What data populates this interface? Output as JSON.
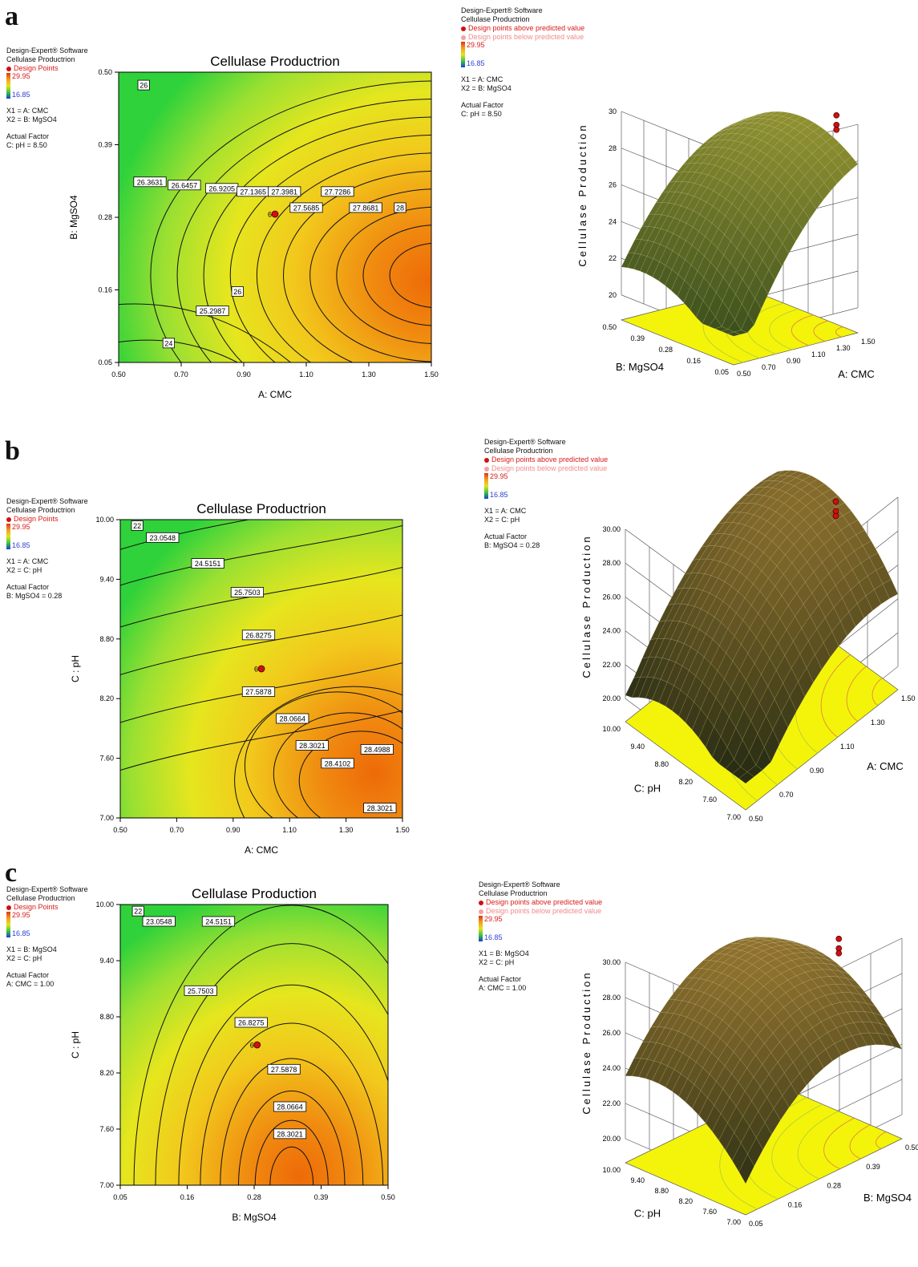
{
  "panels": [
    {
      "label": "a",
      "legend_left": {
        "software": "Design-Expert® Software",
        "response": "Cellulase Productrion",
        "points_label": "Design Points",
        "color_max": "29.95",
        "color_min": "16.85",
        "x1": "X1 = A: CMC",
        "x2": "X2 = B: MgSO4",
        "actual_factor_title": "Actual Factor",
        "actual_factor": "C: pH = 8.50"
      },
      "legend_right": {
        "software": "Design-Expert® Software",
        "response": "Cellulase Productrion",
        "above": "Design points above predicted value",
        "below": "Design points below predicted value",
        "color_max": "29.95",
        "color_min": "16.85",
        "x1": "X1 = A: CMC",
        "x2": "X2 = B: MgSO4",
        "actual_factor_title": "Actual Factor",
        "actual_factor": "C: pH = 8.50"
      },
      "surface": {
        "zlabel": "Cellulase Production",
        "z_ticks": [
          "20",
          "22",
          "24",
          "26",
          "28",
          "30"
        ],
        "back_axis_label": "B: MgSO4",
        "back_ticks": [
          "0.50",
          "0.39",
          "0.28",
          "0.16",
          "0.05"
        ],
        "front_axis_label": "A: CMC",
        "front_ticks": [
          "0.50",
          "0.70",
          "0.90",
          "1.10",
          "1.30",
          "1.50"
        ]
      }
    },
    {
      "label": "b",
      "legend_left": {
        "software": "Design-Expert® Software",
        "response": "Cellulase Productrion",
        "points_label": "Design Points",
        "color_max": "29.95",
        "color_min": "16.85",
        "x1": "X1 = A: CMC",
        "x2": "X2 = C: pH",
        "actual_factor_title": "Actual Factor",
        "actual_factor": "B: MgSO4 = 0.28"
      },
      "legend_right": {
        "software": "Design-Expert® Software",
        "response": "Cellulase Productrion",
        "above": "Design points above predicted value",
        "below": "Design points below predicted value",
        "color_max": "29.95",
        "color_min": "16.85",
        "x1": "X1 = A: CMC",
        "x2": "X2 = C: pH",
        "actual_factor_title": "Actual Factor",
        "actual_factor": "B: MgSO4 = 0.28"
      },
      "surface": {
        "zlabel": "Cellulase Production",
        "z_ticks": [
          "20.00",
          "22.00",
          "24.00",
          "26.00",
          "28.00",
          "30.00"
        ],
        "back_axis_label": "C: pH",
        "back_ticks": [
          "10.00",
          "9.40",
          "8.80",
          "8.20",
          "7.60",
          "7.00"
        ],
        "front_axis_label": "A: CMC",
        "front_ticks": [
          "0.50",
          "0.70",
          "0.90",
          "1.10",
          "1.30",
          "1.50"
        ]
      }
    },
    {
      "label": "c",
      "legend_left": {
        "software": "Design-Expert® Software",
        "response": "Cellulase Productrion",
        "points_label": "Design Points",
        "color_max": "29.95",
        "color_min": "16.85",
        "x1": "X1 = B: MgSO4",
        "x2": "X2 = C: pH",
        "actual_factor_title": "Actual Factor",
        "actual_factor": "A: CMC = 1.00"
      },
      "legend_right": {
        "software": "Design-Expert® Software",
        "response": "Cellulase Productrion",
        "above": "Design points above predicted value",
        "below": "Design points below predicted value",
        "color_max": "29.95",
        "color_min": "16.85",
        "x1": "X1 = B: MgSO4",
        "x2": "X2 = C: pH",
        "actual_factor_title": "Actual Factor",
        "actual_factor": "A: CMC = 1.00"
      },
      "surface": {
        "zlabel": "Cellulase Production",
        "z_ticks": [
          "20.00",
          "22.00",
          "24.00",
          "26.00",
          "28.00",
          "30.00"
        ],
        "back_axis_label": "C: pH",
        "back_ticks": [
          "10.00",
          "9.40",
          "8.80",
          "8.20",
          "7.60",
          "7.00"
        ],
        "front_axis_label": "B: MgSO4",
        "front_ticks": [
          "0.05",
          "0.16",
          "0.28",
          "0.39",
          "0.50"
        ]
      }
    }
  ],
  "colors": {
    "low": "#2fd23a",
    "mid": "#e6e61e",
    "high": "#ee6a08",
    "design_point": "#d01010",
    "surface_base": "#f4f40a"
  },
  "chart_data": [
    {
      "type": "contour",
      "title": "Cellulase Productrion",
      "xlabel": "A: CMC",
      "ylabel": "B: MgSO4",
      "x_ticks": [
        "0.50",
        "0.70",
        "0.90",
        "1.10",
        "1.30",
        "1.50"
      ],
      "y_ticks": [
        "0.05",
        "0.16",
        "0.28",
        "0.39",
        "0.50"
      ],
      "xlim": [
        0.5,
        1.5
      ],
      "ylim": [
        0.05,
        0.5
      ],
      "contour_labels": [
        {
          "text": "26",
          "x": 0.58,
          "y": 0.48
        },
        {
          "text": "26.3631",
          "x": 0.6,
          "y": 0.33
        },
        {
          "text": "26.6457",
          "x": 0.71,
          "y": 0.325
        },
        {
          "text": "26.9205",
          "x": 0.83,
          "y": 0.32
        },
        {
          "text": "27.1365",
          "x": 0.93,
          "y": 0.315
        },
        {
          "text": "27.3981",
          "x": 1.03,
          "y": 0.315
        },
        {
          "text": "27.5685",
          "x": 1.1,
          "y": 0.29
        },
        {
          "text": "27.7286",
          "x": 1.2,
          "y": 0.315
        },
        {
          "text": "27.8681",
          "x": 1.29,
          "y": 0.29
        },
        {
          "text": "28",
          "x": 1.4,
          "y": 0.29
        },
        {
          "text": "26",
          "x": 0.88,
          "y": 0.16
        },
        {
          "text": "25.2987",
          "x": 0.8,
          "y": 0.13
        },
        {
          "text": "24",
          "x": 0.66,
          "y": 0.08
        }
      ],
      "design_points": [
        {
          "x": 1.0,
          "y": 0.28,
          "count": "6"
        }
      ]
    },
    {
      "type": "contour",
      "title": "Cellulase Productrion",
      "xlabel": "A: CMC",
      "ylabel": "C : pH",
      "x_ticks": [
        "0.50",
        "0.70",
        "0.90",
        "1.10",
        "1.30",
        "1.50"
      ],
      "y_ticks": [
        "7.00",
        "7.60",
        "8.20",
        "8.80",
        "9.40",
        "10.00"
      ],
      "xlim": [
        0.5,
        1.5
      ],
      "ylim": [
        7.0,
        10.0
      ],
      "contour_labels": [
        {
          "text": "22",
          "x": 0.56,
          "y": 9.94
        },
        {
          "text": "23.0548",
          "x": 0.65,
          "y": 9.82
        },
        {
          "text": "24.5151",
          "x": 0.81,
          "y": 9.56
        },
        {
          "text": "25.7503",
          "x": 0.95,
          "y": 9.27
        },
        {
          "text": "26.8275",
          "x": 0.99,
          "y": 8.84
        },
        {
          "text": "27.5878",
          "x": 0.99,
          "y": 8.27
        },
        {
          "text": "28.0664",
          "x": 1.11,
          "y": 8.0
        },
        {
          "text": "28.3021",
          "x": 1.18,
          "y": 7.73
        },
        {
          "text": "28.4102",
          "x": 1.27,
          "y": 7.55
        },
        {
          "text": "28.4988",
          "x": 1.41,
          "y": 7.69
        },
        {
          "text": "28.3021",
          "x": 1.42,
          "y": 7.1
        }
      ],
      "design_points": [
        {
          "x": 1.0,
          "y": 8.5,
          "count": "6"
        }
      ]
    },
    {
      "type": "contour",
      "title": "Cellulase Production",
      "xlabel": "B: MgSO4",
      "ylabel": "C : pH",
      "x_ticks": [
        "0.05",
        "0.16",
        "0.28",
        "0.39",
        "0.50"
      ],
      "y_ticks": [
        "7.00",
        "7.60",
        "8.20",
        "8.80",
        "9.40",
        "10.00"
      ],
      "xlim": [
        0.05,
        0.5
      ],
      "ylim": [
        7.0,
        10.0
      ],
      "contour_labels": [
        {
          "text": "22",
          "x": 0.08,
          "y": 9.93
        },
        {
          "text": "23.0548",
          "x": 0.115,
          "y": 9.82
        },
        {
          "text": "24.5151",
          "x": 0.215,
          "y": 9.82
        },
        {
          "text": "25.7503",
          "x": 0.185,
          "y": 9.08
        },
        {
          "text": "26.8275",
          "x": 0.27,
          "y": 8.74
        },
        {
          "text": "27.5878",
          "x": 0.325,
          "y": 8.24
        },
        {
          "text": "28.0664",
          "x": 0.335,
          "y": 7.84
        },
        {
          "text": "28.3021",
          "x": 0.335,
          "y": 7.55
        }
      ],
      "design_points": [
        {
          "x": 0.28,
          "y": 8.5,
          "count": "6"
        }
      ]
    }
  ]
}
